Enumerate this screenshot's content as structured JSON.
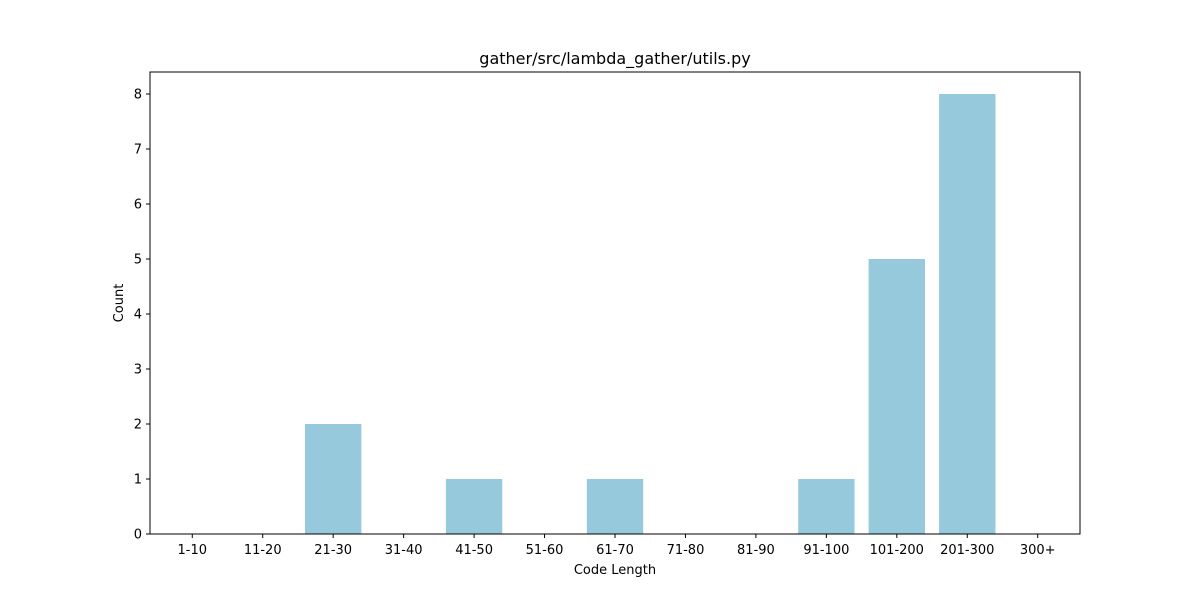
{
  "chart_data": {
    "type": "bar",
    "title": "gather/src/lambda_gather/utils.py",
    "xlabel": "Code Length",
    "ylabel": "Count",
    "categories": [
      "1-10",
      "11-20",
      "21-30",
      "31-40",
      "41-50",
      "51-60",
      "61-70",
      "71-80",
      "81-90",
      "91-100",
      "101-200",
      "201-300",
      "300+"
    ],
    "values": [
      0,
      0,
      2,
      0,
      1,
      0,
      1,
      0,
      0,
      1,
      5,
      8,
      0
    ],
    "ylim": [
      0,
      8.4
    ],
    "yticks": [
      0,
      1,
      2,
      3,
      4,
      5,
      6,
      7,
      8
    ],
    "bar_color": "#96c9dc",
    "grid": false,
    "legend": "none"
  }
}
